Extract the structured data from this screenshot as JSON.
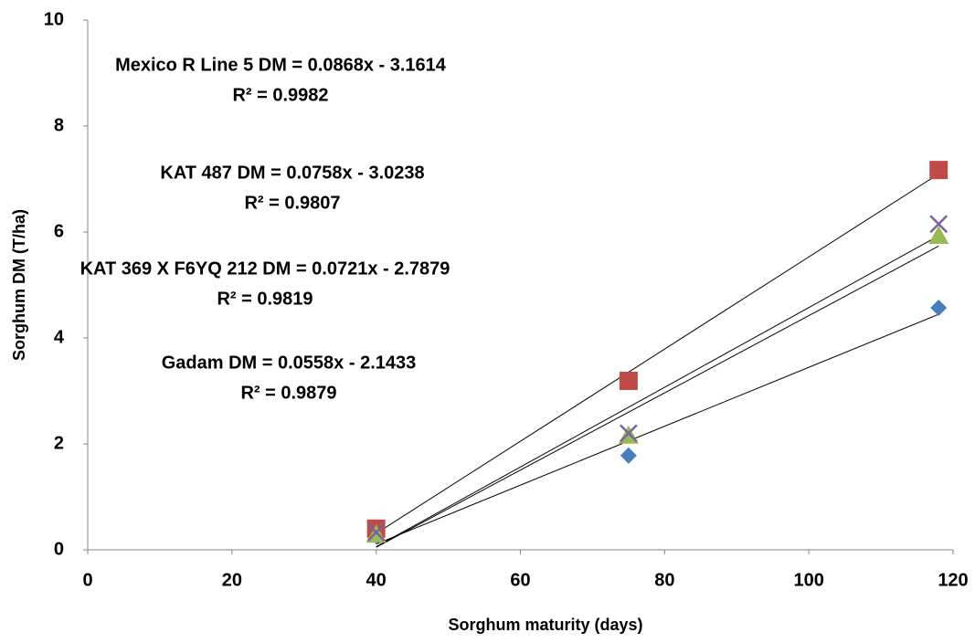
{
  "chart_data": {
    "type": "scatter",
    "x_label": "Sorghum maturity (days)",
    "y_label": "Sorghum DM (T/ha)",
    "x": [
      40,
      75,
      118
    ],
    "series": [
      {
        "marker": "diamond",
        "color": "#4a7ebb",
        "values": [
          0.26,
          1.78,
          4.57
        ]
      },
      {
        "marker": "square",
        "color": "#be4b48",
        "values": [
          0.4,
          3.19,
          7.17
        ]
      },
      {
        "marker": "triangle",
        "color": "#98b954",
        "values": [
          0.29,
          2.16,
          5.93
        ]
      },
      {
        "marker": "x",
        "color": "#7d60a0",
        "values": [
          0.33,
          2.2,
          6.15
        ]
      }
    ],
    "trendline": true,
    "annotations": [
      {
        "equation": "Mexico R  Line 5 DM = 0.0868x - 3.1614",
        "r2": "R² = 0.9982"
      },
      {
        "equation": "KAT 487 DM = 0.0758x - 3.0238",
        "r2": "R² = 0.9807"
      },
      {
        "equation": "KAT 369 X F6YQ 212 DM = 0.0721x - 2.7879",
        "r2": "R² = 0.9819"
      },
      {
        "equation": "Gadam DM = 0.0558x - 2.1433",
        "r2": "R² = 0.9879"
      }
    ],
    "xlim": [
      0,
      120
    ],
    "xticks": [
      0,
      20,
      40,
      60,
      80,
      100,
      120
    ],
    "ylim": [
      0,
      10
    ],
    "yticks": [
      0,
      2,
      4,
      6,
      8,
      10
    ]
  }
}
